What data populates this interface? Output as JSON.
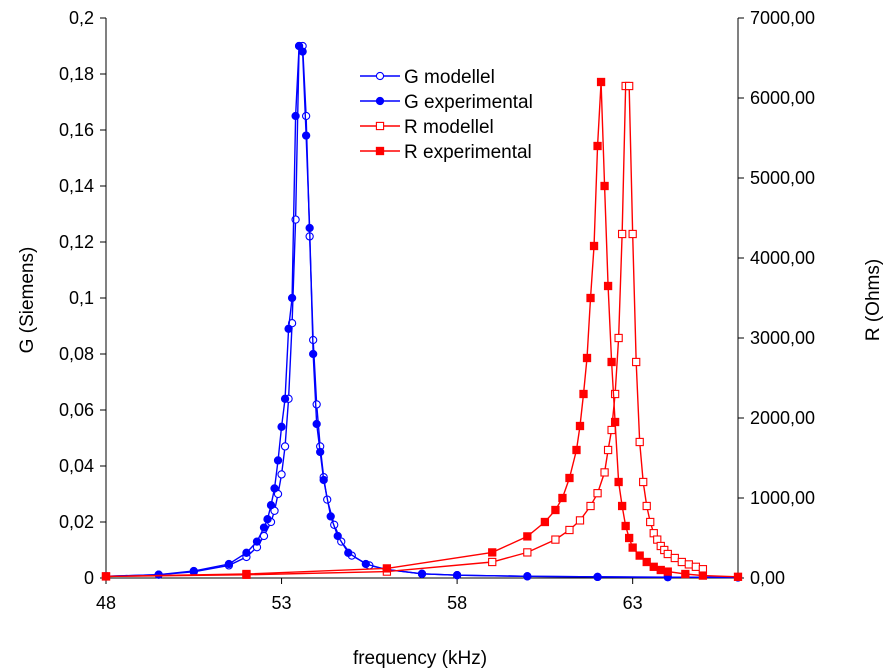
{
  "chart_data": {
    "type": "line",
    "xlabel": "frequency (kHz)",
    "ylabel": "G (Siemens)",
    "y2label": "R (Ohms)",
    "xlim": [
      48,
      66
    ],
    "ylim": [
      0,
      0.2
    ],
    "y2lim": [
      0,
      7000
    ],
    "xticks": [
      "48",
      "53",
      "58",
      "63"
    ],
    "yticks": [
      "0",
      "0,02",
      "0,04",
      "0,06",
      "0,08",
      "0,1",
      "0,12",
      "0,14",
      "0,16",
      "0,18",
      "0,2"
    ],
    "y2ticks": [
      "0,00",
      "1000,00",
      "2000,00",
      "3000,00",
      "4000,00",
      "5000,00",
      "6000,00",
      "7000,00"
    ],
    "grid": false,
    "legend_position": "top-center",
    "series": [
      {
        "name": "G modellel",
        "axis": "left",
        "color": "#0000ff",
        "marker": "circle-open",
        "x": [
          48.0,
          49.5,
          50.5,
          51.5,
          52.0,
          52.3,
          52.5,
          52.7,
          52.8,
          52.9,
          53.0,
          53.1,
          53.2,
          53.3,
          53.4,
          53.5,
          53.6,
          53.7,
          53.8,
          53.9,
          54.0,
          54.1,
          54.2,
          54.3,
          54.5,
          54.7,
          55.0,
          55.5,
          56.0,
          57.0,
          58.0,
          60.0,
          62.0,
          64.0,
          66.0
        ],
        "y": [
          0.0006,
          0.0012,
          0.0022,
          0.0045,
          0.0075,
          0.011,
          0.015,
          0.02,
          0.024,
          0.03,
          0.037,
          0.047,
          0.064,
          0.091,
          0.128,
          0.19,
          0.19,
          0.165,
          0.122,
          0.085,
          0.062,
          0.047,
          0.036,
          0.028,
          0.019,
          0.013,
          0.008,
          0.0045,
          0.003,
          0.0015,
          0.001,
          0.0006,
          0.0004,
          0.0003,
          0.0002
        ]
      },
      {
        "name": "G experimental",
        "axis": "left",
        "color": "#0000ff",
        "marker": "circle-filled",
        "x": [
          48.0,
          49.5,
          50.5,
          51.5,
          52.0,
          52.3,
          52.5,
          52.6,
          52.7,
          52.8,
          52.9,
          53.0,
          53.1,
          53.2,
          53.3,
          53.4,
          53.5,
          53.6,
          53.7,
          53.8,
          53.9,
          54.0,
          54.1,
          54.2,
          54.4,
          54.6,
          54.9,
          55.4,
          56.0,
          57.0,
          58.0,
          60.0,
          62.0,
          64.0,
          66.0
        ],
        "y": [
          0.0006,
          0.0012,
          0.0025,
          0.005,
          0.009,
          0.013,
          0.018,
          0.021,
          0.026,
          0.032,
          0.042,
          0.054,
          0.064,
          0.089,
          0.1,
          0.165,
          0.19,
          0.188,
          0.158,
          0.125,
          0.08,
          0.055,
          0.045,
          0.035,
          0.022,
          0.015,
          0.009,
          0.005,
          0.003,
          0.0015,
          0.001,
          0.0006,
          0.0004,
          0.0003,
          0.0002
        ]
      },
      {
        "name": "R modellel",
        "axis": "right",
        "color": "#ff0000",
        "marker": "square-open",
        "x": [
          48.0,
          52.0,
          56.0,
          59.0,
          60.0,
          60.8,
          61.2,
          61.5,
          61.8,
          62.0,
          62.2,
          62.3,
          62.4,
          62.5,
          62.6,
          62.7,
          62.8,
          62.9,
          63.0,
          63.1,
          63.2,
          63.3,
          63.4,
          63.5,
          63.6,
          63.7,
          63.8,
          63.9,
          64.0,
          64.2,
          64.4,
          64.6,
          64.8,
          65.0
        ],
        "y": [
          20,
          40,
          80,
          200,
          320,
          480,
          600,
          720,
          900,
          1060,
          1320,
          1600,
          1850,
          2300,
          3000,
          4300,
          6150,
          6150,
          4300,
          2700,
          1700,
          1200,
          900,
          700,
          560,
          480,
          400,
          350,
          300,
          250,
          200,
          170,
          140,
          110
        ]
      },
      {
        "name": "R experimental",
        "axis": "right",
        "color": "#ff0000",
        "marker": "square-filled",
        "x": [
          48.0,
          52.0,
          56.0,
          59.0,
          60.0,
          60.5,
          60.8,
          61.0,
          61.2,
          61.4,
          61.5,
          61.6,
          61.7,
          61.8,
          61.9,
          62.0,
          62.1,
          62.2,
          62.3,
          62.4,
          62.5,
          62.6,
          62.7,
          62.8,
          62.9,
          63.0,
          63.2,
          63.4,
          63.6,
          63.8,
          64.0,
          64.5,
          65.0,
          66.0
        ],
        "y": [
          20,
          50,
          120,
          320,
          520,
          700,
          850,
          1000,
          1250,
          1600,
          1900,
          2300,
          2750,
          3500,
          4150,
          5400,
          6200,
          4900,
          3650,
          2700,
          1950,
          1200,
          900,
          650,
          500,
          380,
          280,
          200,
          140,
          100,
          80,
          50,
          30,
          15
        ]
      }
    ]
  }
}
